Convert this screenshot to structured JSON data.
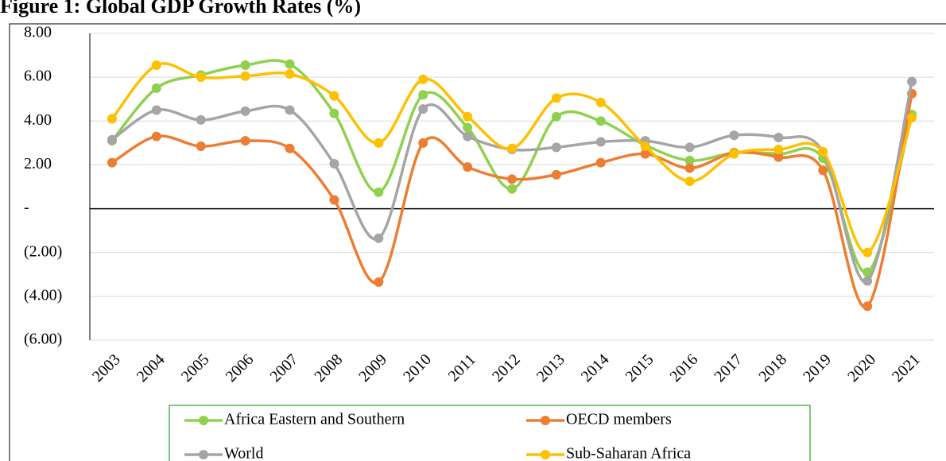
{
  "chart_data": {
    "type": "line",
    "title": "Figure 1: Global GDP Growth Rates (%)",
    "categories": [
      "2003",
      "2004",
      "2005",
      "2006",
      "2007",
      "2008",
      "2009",
      "2010",
      "2011",
      "2012",
      "2013",
      "2014",
      "2015",
      "2016",
      "2017",
      "2018",
      "2019",
      "2020",
      "2021"
    ],
    "ylim": [
      -6,
      8
    ],
    "yticks": [
      {
        "value": 8,
        "label": "8.00"
      },
      {
        "value": 6,
        "label": "6.00"
      },
      {
        "value": 4,
        "label": "4.00"
      },
      {
        "value": 2,
        "label": "2.00"
      },
      {
        "value": 0,
        "label": "-"
      },
      {
        "value": -2,
        "label": "(2.00)"
      },
      {
        "value": -4,
        "label": "(4.00)"
      },
      {
        "value": -6,
        "label": "(6.00)"
      }
    ],
    "grid": true,
    "smooth": true,
    "series": [
      {
        "name": "Africa Eastern and Southern",
        "color": "#8fd14f",
        "values": [
          3.1,
          5.5,
          6.1,
          6.55,
          6.6,
          4.35,
          0.75,
          5.2,
          3.7,
          0.9,
          4.2,
          4.0,
          2.9,
          2.2,
          2.55,
          2.5,
          2.3,
          -2.9,
          4.3
        ]
      },
      {
        "name": "OECD members",
        "color": "#ed7d31",
        "values": [
          2.1,
          3.3,
          2.85,
          3.1,
          2.75,
          0.4,
          -3.35,
          3.0,
          1.9,
          1.35,
          1.55,
          2.1,
          2.5,
          1.85,
          2.55,
          2.35,
          1.75,
          -4.45,
          5.25
        ]
      },
      {
        "name": "World",
        "color": "#a5a5a5",
        "values": [
          3.15,
          4.5,
          4.05,
          4.45,
          4.5,
          2.05,
          -1.35,
          4.55,
          3.3,
          2.7,
          2.8,
          3.05,
          3.1,
          2.8,
          3.35,
          3.25,
          2.6,
          -3.3,
          5.8
        ]
      },
      {
        "name": "Sub-Saharan Africa",
        "color": "#ffc000",
        "values": [
          4.1,
          6.55,
          6.0,
          6.05,
          6.15,
          5.15,
          3.0,
          5.9,
          4.2,
          2.75,
          5.05,
          4.85,
          2.85,
          1.25,
          2.5,
          2.7,
          2.6,
          -2.0,
          4.15
        ]
      }
    ]
  }
}
